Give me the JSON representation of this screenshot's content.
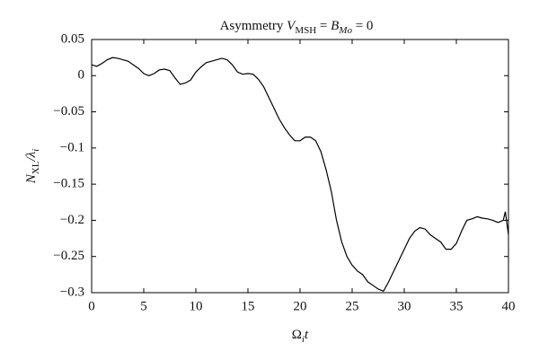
{
  "chart_data": {
    "type": "line",
    "title_parts": [
      "Asymmetry ",
      "V",
      "MSH",
      " = ",
      "B",
      "Mo",
      " = 0"
    ],
    "x_label_parts": [
      "Ω",
      "i",
      "t"
    ],
    "y_label_parts": [
      "N",
      "XL",
      "/λ",
      "i"
    ],
    "x": [
      0,
      0.5,
      1,
      1.5,
      2,
      2.5,
      3,
      3.5,
      4,
      4.5,
      5,
      5.5,
      6,
      6.5,
      7,
      7.5,
      8,
      8.5,
      9,
      9.5,
      10,
      10.5,
      11,
      11.5,
      12,
      12.5,
      13,
      13.5,
      14,
      14.5,
      15,
      15.5,
      16,
      16.5,
      17,
      17.5,
      18,
      18.5,
      19,
      19.5,
      20,
      20.5,
      21,
      21.5,
      22,
      22.5,
      23,
      23.5,
      24,
      24.5,
      25,
      25.5,
      26,
      26.5,
      27,
      27.5,
      28,
      28.5,
      29,
      29.5,
      30,
      30.5,
      31,
      31.5,
      32,
      32.5,
      33,
      33.5,
      34,
      34.5,
      35,
      35.5,
      36,
      36.5,
      37,
      37.5,
      38,
      38.5,
      39,
      39.5,
      39.7,
      40
    ],
    "series": [
      {
        "color": "#000000",
        "values": [
          0.015,
          0.013,
          0.017,
          0.022,
          0.025,
          0.024,
          0.022,
          0.02,
          0.015,
          0.01,
          0.003,
          0,
          0.003,
          0.008,
          0.009,
          0.007,
          -0.003,
          -0.012,
          -0.01,
          -0.006,
          0.005,
          0.012,
          0.018,
          0.02,
          0.022,
          0.024,
          0.022,
          0.015,
          0.005,
          0.002,
          0.003,
          0.002,
          -0.005,
          -0.015,
          -0.03,
          -0.045,
          -0.06,
          -0.072,
          -0.082,
          -0.09,
          -0.09,
          -0.085,
          -0.085,
          -0.09,
          -0.105,
          -0.13,
          -0.16,
          -0.2,
          -0.23,
          -0.25,
          -0.262,
          -0.27,
          -0.275,
          -0.285,
          -0.29,
          -0.295,
          -0.298,
          -0.285,
          -0.27,
          -0.255,
          -0.24,
          -0.225,
          -0.215,
          -0.21,
          -0.212,
          -0.22,
          -0.225,
          -0.23,
          -0.24,
          -0.24,
          -0.232,
          -0.215,
          -0.2,
          -0.198,
          -0.195,
          -0.197,
          -0.198,
          -0.2,
          -0.203,
          -0.2,
          -0.188,
          -0.22
        ]
      }
    ],
    "xlim": [
      0,
      40
    ],
    "xticks": [
      0,
      5,
      10,
      15,
      20,
      25,
      30,
      35,
      40
    ],
    "ylim": [
      -0.3,
      0.05
    ],
    "yticks": [
      0.05,
      0,
      {
        "value": -0.05,
        "label": "−0.05"
      },
      {
        "value": -0.1,
        "label": "−0.1"
      },
      {
        "value": -0.15,
        "label": "−0.15"
      },
      {
        "value": -0.2,
        "label": "−0.2"
      },
      {
        "value": -0.25,
        "label": "−0.25"
      },
      {
        "value": -0.3,
        "label": "−0.3"
      }
    ],
    "grid": false
  }
}
